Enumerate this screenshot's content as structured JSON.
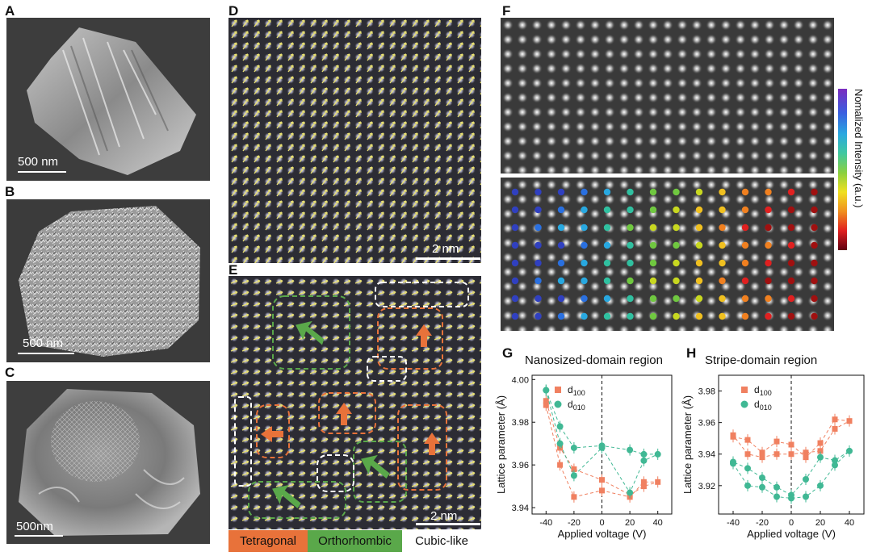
{
  "panels": {
    "A": {
      "label": "A",
      "scale": "500 nm"
    },
    "B": {
      "label": "B",
      "scale": "500 nm"
    },
    "C": {
      "label": "C",
      "scale": "500nm"
    },
    "D": {
      "label": "D",
      "scale": "2 nm"
    },
    "E": {
      "label": "E",
      "scale": "2 nm"
    },
    "F": {
      "label": "F"
    },
    "G": {
      "label": "G"
    },
    "H": {
      "label": "H"
    }
  },
  "phases": {
    "tetragonal": "Tetragonal",
    "orthorhombic": "Orthorhombic",
    "cubic": "Cubic-like",
    "tetragonal_color": "#e8723a",
    "orthorhombic_color": "#5aa84a",
    "cubic_color": "#ffffff"
  },
  "colorbar": {
    "label": "Nomalized Intensity (a.u.)"
  },
  "chart_data": [
    {
      "type": "scatter",
      "title": "Nanosized-domain region",
      "xlabel": "Applied voltage (V)",
      "ylabel": "Lattice parameter (Å)",
      "xlim": [
        -50,
        50
      ],
      "ylim": [
        3.937,
        4.002
      ],
      "xticks": [
        -40,
        -20,
        0,
        20,
        40
      ],
      "yticks": [
        3.94,
        3.96,
        3.98,
        4.0
      ],
      "series": [
        {
          "name": "d100",
          "color": "#f08060",
          "marker": "square",
          "x": [
            -40,
            -30,
            -20,
            0,
            20,
            30,
            40,
            30,
            20,
            0,
            -20,
            -30,
            -40
          ],
          "y": [
            3.988,
            3.96,
            3.945,
            3.948,
            3.945,
            3.952,
            3.952,
            3.95,
            3.946,
            3.953,
            3.958,
            3.968,
            3.99
          ]
        },
        {
          "name": "d010",
          "color": "#40b894",
          "marker": "circle",
          "x": [
            -40,
            -30,
            -20,
            0,
            20,
            30,
            40,
            30,
            20,
            0,
            -20,
            -30,
            -40
          ],
          "y": [
            3.995,
            3.978,
            3.968,
            3.969,
            3.967,
            3.965,
            3.965,
            3.962,
            3.947,
            3.968,
            3.955,
            3.97,
            3.995
          ]
        }
      ]
    },
    {
      "type": "scatter",
      "title": "Stripe-domain region",
      "xlabel": "Applied voltage (V)",
      "ylabel": "Lattice parameter (Å)",
      "xlim": [
        -50,
        50
      ],
      "ylim": [
        3.902,
        3.99
      ],
      "xticks": [
        -40,
        -20,
        0,
        20,
        40
      ],
      "yticks": [
        3.92,
        3.94,
        3.96,
        3.98
      ],
      "series": [
        {
          "name": "d100",
          "color": "#f08060",
          "marker": "square",
          "x": [
            -40,
            -30,
            -20,
            -10,
            0,
            10,
            20,
            30,
            40,
            30,
            20,
            10,
            0,
            -10,
            -20,
            -30,
            -40
          ],
          "y": [
            3.951,
            3.949,
            3.941,
            3.948,
            3.946,
            3.938,
            3.947,
            3.962,
            3.961,
            3.956,
            3.942,
            3.941,
            3.94,
            3.94,
            3.938,
            3.94,
            3.952
          ]
        },
        {
          "name": "d010",
          "color": "#40b894",
          "marker": "circle",
          "x": [
            -40,
            -30,
            -20,
            -10,
            0,
            10,
            20,
            30,
            40,
            30,
            20,
            10,
            0,
            -10,
            -20,
            -30,
            -40
          ],
          "y": [
            3.934,
            3.92,
            3.919,
            3.913,
            3.912,
            3.913,
            3.92,
            3.933,
            3.942,
            3.936,
            3.938,
            3.924,
            3.914,
            3.919,
            3.925,
            3.931,
            3.935
          ]
        }
      ]
    }
  ]
}
